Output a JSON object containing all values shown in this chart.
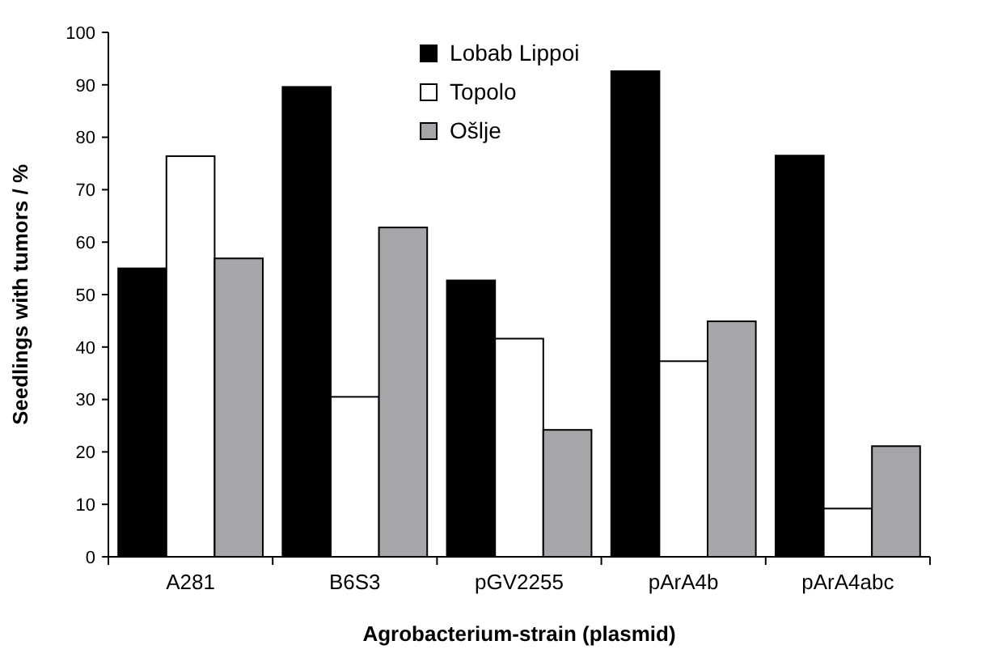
{
  "chart_data": {
    "type": "bar",
    "xlabel": "Agrobacterium-strain (plasmid)",
    "ylabel": "Seedlings with tumors / %",
    "categories": [
      "A281",
      "B6S3",
      "pGV2255",
      "pArA4b",
      "pArA4abc"
    ],
    "series": [
      {
        "name": "Lobab  Lippoi",
        "color": "#000000",
        "values": [
          55,
          89.6,
          52.7,
          92.6,
          76.5
        ]
      },
      {
        "name": "Topolo",
        "color": "#ffffff",
        "values": [
          76.4,
          30.5,
          41.6,
          37.3,
          9.2
        ]
      },
      {
        "name": "Ošlje",
        "color": "#a6a6a8",
        "values": [
          56.9,
          62.8,
          24.2,
          44.9,
          21.1
        ]
      }
    ],
    "ylim": [
      0,
      100
    ],
    "yticks": [
      0,
      10,
      20,
      30,
      40,
      50,
      60,
      70,
      80,
      90,
      100
    ],
    "grid": false,
    "legend": "top"
  }
}
